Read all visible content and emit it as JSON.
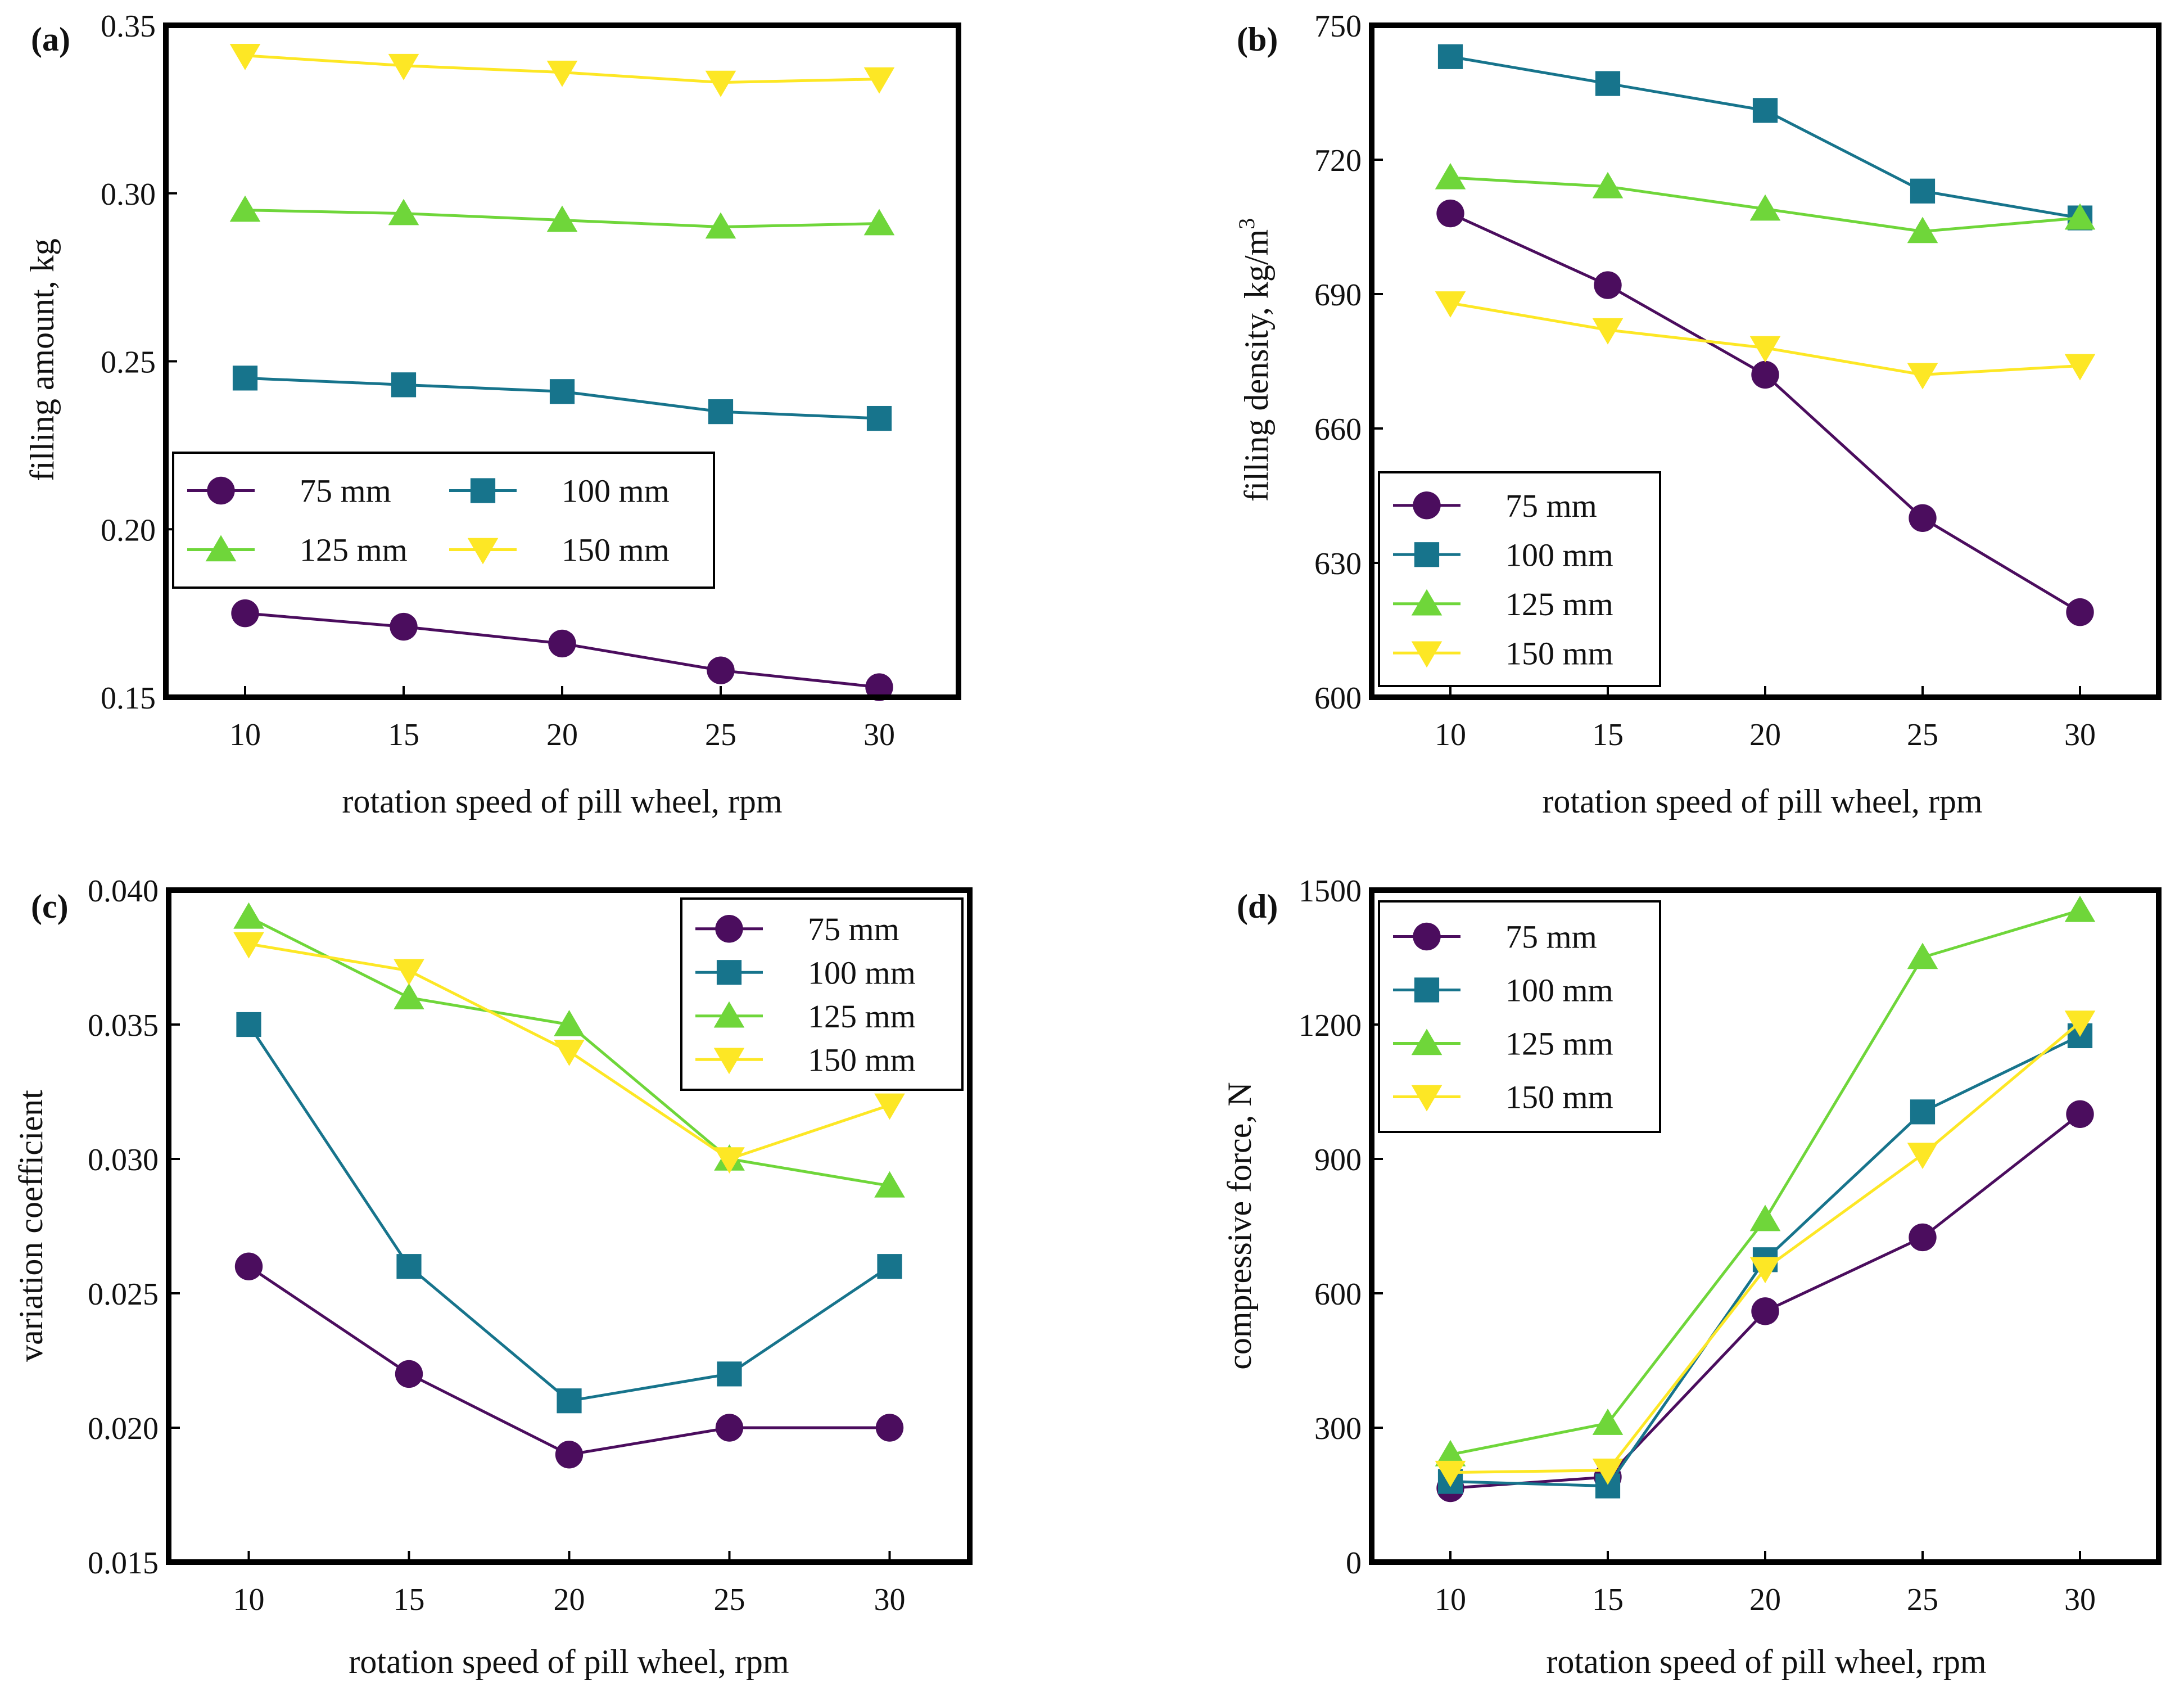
{
  "colors": {
    "75 mm": "#4b0d5e",
    "100 mm": "#17748c",
    "125 mm": "#6fd63a",
    "150 mm": "#fde725"
  },
  "chart_data": [
    {
      "panel_label": "(a)",
      "type": "line",
      "title": "",
      "xlabel": "rotation speed of pill wheel, rpm",
      "ylabel": "filling amount, kg",
      "ylabel_sup": "",
      "x": [
        10,
        15,
        20,
        25,
        30
      ],
      "x_ticks": [
        "10",
        "15",
        "20",
        "25",
        "30"
      ],
      "xlim": [
        7.5,
        32.5
      ],
      "ylim": [
        0.15,
        0.35
      ],
      "y_ticks": [
        "0.15",
        "0.20",
        "0.25",
        "0.30",
        "0.35"
      ],
      "legend_position": "center-left",
      "legend_columns": 2,
      "series": [
        {
          "name": "75 mm",
          "marker": "circle",
          "values": [
            0.175,
            0.171,
            0.166,
            0.158,
            0.153
          ]
        },
        {
          "name": "100 mm",
          "marker": "square",
          "values": [
            0.245,
            0.243,
            0.241,
            0.235,
            0.233
          ]
        },
        {
          "name": "125 mm",
          "marker": "triangle-up",
          "values": [
            0.295,
            0.294,
            0.292,
            0.29,
            0.291
          ]
        },
        {
          "name": "150 mm",
          "marker": "triangle-down",
          "values": [
            0.341,
            0.338,
            0.336,
            0.333,
            0.334
          ]
        }
      ]
    },
    {
      "panel_label": "(b)",
      "type": "line",
      "title": "",
      "xlabel": "rotation speed of pill wheel, rpm",
      "ylabel": "filling density, kg/m",
      "ylabel_sup": "3",
      "x": [
        10,
        15,
        20,
        25,
        30
      ],
      "x_ticks": [
        "10",
        "15",
        "20",
        "25",
        "30"
      ],
      "xlim": [
        7.5,
        32.5
      ],
      "ylim": [
        600,
        750
      ],
      "y_ticks": [
        "600",
        "630",
        "660",
        "690",
        "720",
        "750"
      ],
      "legend_position": "bottom-left",
      "legend_columns": 1,
      "series": [
        {
          "name": "75 mm",
          "marker": "circle",
          "values": [
            708,
            692,
            672,
            640,
            619
          ]
        },
        {
          "name": "100 mm",
          "marker": "square",
          "values": [
            743,
            737,
            731,
            713,
            707
          ]
        },
        {
          "name": "125 mm",
          "marker": "triangle-up",
          "values": [
            716,
            714,
            709,
            704,
            707
          ]
        },
        {
          "name": "150 mm",
          "marker": "triangle-down",
          "values": [
            688,
            682,
            678,
            672,
            674
          ]
        }
      ]
    },
    {
      "panel_label": "(c)",
      "type": "line",
      "title": "",
      "xlabel": "rotation speed of pill wheel, rpm",
      "ylabel": "variation coefficient",
      "ylabel_sup": "",
      "x": [
        10,
        15,
        20,
        25,
        30
      ],
      "x_ticks": [
        "10",
        "15",
        "20",
        "25",
        "30"
      ],
      "xlim": [
        7.5,
        32.5
      ],
      "ylim": [
        0.015,
        0.04
      ],
      "y_ticks": [
        "0.015",
        "0.020",
        "0.025",
        "0.030",
        "0.035",
        "0.040"
      ],
      "legend_position": "top-right",
      "legend_columns": 1,
      "series": [
        {
          "name": "75 mm",
          "marker": "circle",
          "values": [
            0.026,
            0.022,
            0.019,
            0.02,
            0.02
          ]
        },
        {
          "name": "100 mm",
          "marker": "square",
          "values": [
            0.035,
            0.026,
            0.021,
            0.022,
            0.026
          ]
        },
        {
          "name": "125 mm",
          "marker": "triangle-up",
          "values": [
            0.039,
            0.036,
            0.035,
            0.03,
            0.029
          ]
        },
        {
          "name": "150 mm",
          "marker": "triangle-down",
          "values": [
            0.038,
            0.037,
            0.034,
            0.03,
            0.032
          ]
        }
      ]
    },
    {
      "panel_label": "(d)",
      "type": "line",
      "title": "",
      "xlabel": "rotation speed of pill wheel, rpm",
      "ylabel": "compressive force, N",
      "ylabel_sup": "",
      "x": [
        10,
        15,
        20,
        25,
        30
      ],
      "x_ticks": [
        "10",
        "15",
        "20",
        "25",
        "30"
      ],
      "xlim": [
        7.5,
        32.5
      ],
      "ylim": [
        0,
        1500
      ],
      "y_ticks": [
        "0",
        "300",
        "600",
        "900",
        "1200",
        "1500"
      ],
      "legend_position": "top-left",
      "legend_columns": 1,
      "series": [
        {
          "name": "75 mm",
          "marker": "circle",
          "values": [
            165,
            190,
            560,
            725,
            1000
          ]
        },
        {
          "name": "100 mm",
          "marker": "square",
          "values": [
            180,
            170,
            675,
            1005,
            1175
          ]
        },
        {
          "name": "125 mm",
          "marker": "triangle-up",
          "values": [
            240,
            310,
            765,
            1350,
            1455
          ]
        },
        {
          "name": "150 mm",
          "marker": "triangle-down",
          "values": [
            200,
            205,
            655,
            910,
            1205
          ]
        }
      ]
    }
  ]
}
